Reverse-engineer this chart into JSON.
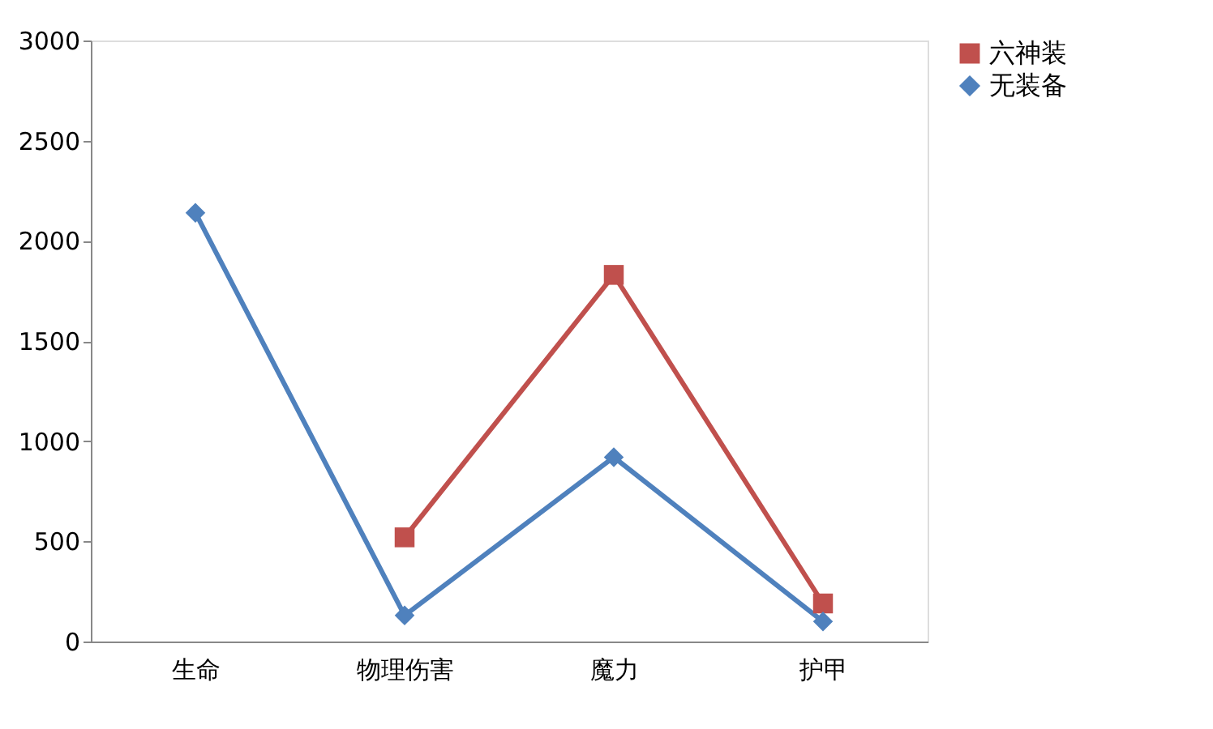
{
  "chart_data": {
    "type": "line",
    "categories": [
      "生命",
      "物理伤害",
      "魔力",
      "护甲"
    ],
    "series": [
      {
        "name": "六神装",
        "color": "#c0504d",
        "marker": "square",
        "values": [
          null,
          520,
          1830,
          190
        ]
      },
      {
        "name": "无装备",
        "color": "#4f81bd",
        "marker": "diamond",
        "values": [
          2140,
          130,
          920,
          100
        ]
      }
    ],
    "ylim": [
      0,
      3000
    ],
    "yticks": [
      0,
      500,
      1000,
      1500,
      2000,
      2500,
      3000
    ],
    "grid": false,
    "legend": "right"
  }
}
